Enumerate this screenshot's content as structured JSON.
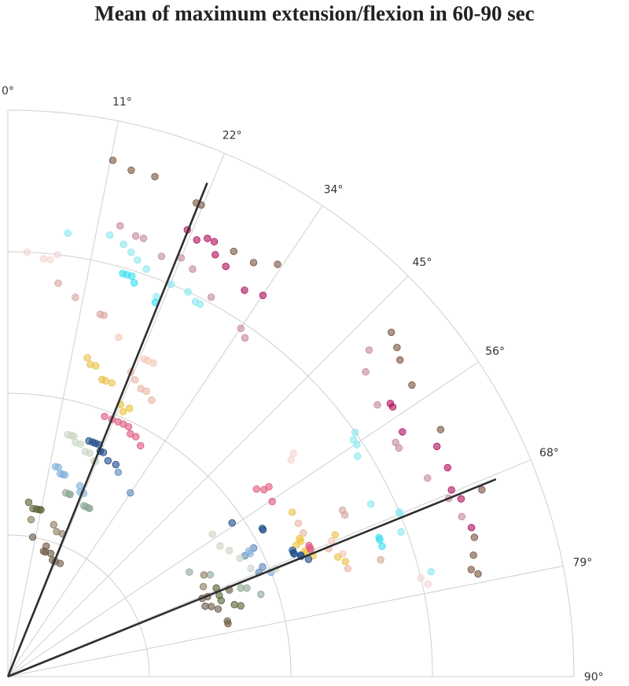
{
  "chart_data": {
    "type": "scatter",
    "coordinate_system": "polar",
    "title": "Mean of maximum extension/flexion in 60-90 sec",
    "theta_ticks": [
      "0°",
      "11°",
      "22°",
      "34°",
      "45°",
      "56°",
      "68°",
      "79°",
      "90°"
    ],
    "theta_range_deg": [
      0,
      90
    ],
    "r_range": [
      0,
      1
    ],
    "r_gridlines": [
      0.25,
      0.5,
      0.75,
      1.0
    ],
    "grid": true,
    "reference_lines": [
      {
        "angle_deg": 22,
        "r": 0.94,
        "color": "#2f2f2f"
      },
      {
        "angle_deg": 68,
        "r": 0.93,
        "color": "#2f2f2f"
      }
    ],
    "series": [
      {
        "color": "#7b5541",
        "points": [
          [
            11.5,
            0.93
          ],
          [
            13.7,
            0.92
          ],
          [
            16.4,
            0.92
          ],
          [
            21.7,
            0.9
          ],
          [
            22.3,
            0.9
          ],
          [
            28.0,
            0.85
          ],
          [
            30.7,
            0.85
          ],
          [
            33.2,
            0.87
          ]
        ]
      },
      {
        "color": "#b0145f",
        "points": [
          [
            21.9,
            0.85
          ],
          [
            23.4,
            0.84
          ],
          [
            24.5,
            0.85
          ],
          [
            25.4,
            0.85
          ],
          [
            26.2,
            0.83
          ],
          [
            28.0,
            0.82
          ],
          [
            31.5,
            0.8
          ],
          [
            33.8,
            0.81
          ]
        ]
      },
      {
        "color": "#c48a9b",
        "points": [
          [
            14.0,
            0.82
          ],
          [
            16.2,
            0.81
          ],
          [
            17.2,
            0.81
          ],
          [
            20.1,
            0.79
          ],
          [
            22.5,
            0.8
          ],
          [
            24.4,
            0.79
          ],
          [
            28.2,
            0.76
          ],
          [
            33.8,
            0.74
          ],
          [
            35.0,
            0.73
          ]
        ]
      },
      {
        "color": "#8be8f0",
        "points": [
          [
            7.7,
            0.79
          ],
          [
            13.0,
            0.8
          ],
          [
            15.0,
            0.79
          ],
          [
            16.2,
            0.78
          ],
          [
            17.3,
            0.77
          ],
          [
            18.8,
            0.76
          ],
          [
            22.6,
            0.75
          ],
          [
            25.1,
            0.75
          ],
          [
            26.6,
            0.74
          ],
          [
            27.3,
            0.74
          ],
          [
            21.4,
            0.72
          ]
        ]
      },
      {
        "color": "#3cdfee",
        "points": [
          [
            15.9,
            0.74
          ],
          [
            16.5,
            0.74
          ],
          [
            17.2,
            0.74
          ],
          [
            17.8,
            0.73
          ],
          [
            21.5,
            0.71
          ]
        ]
      },
      {
        "color": "#f6d5d5",
        "points": [
          [
            2.6,
            0.75
          ],
          [
            4.9,
            0.74
          ],
          [
            5.8,
            0.74
          ],
          [
            6.7,
            0.75
          ]
        ]
      },
      {
        "color": "#d8a7a0",
        "points": [
          [
            7.3,
            0.7
          ],
          [
            10.1,
            0.68
          ],
          [
            14.3,
            0.66
          ],
          [
            14.9,
            0.66
          ]
        ]
      },
      {
        "color": "#f6c8b5",
        "points": [
          [
            18.1,
            0.63
          ],
          [
            23.3,
            0.61
          ],
          [
            23.9,
            0.61
          ],
          [
            24.9,
            0.61
          ]
        ]
      },
      {
        "color": "#e8b6a7",
        "points": [
          [
            22.0,
            0.58
          ],
          [
            23.2,
            0.57
          ],
          [
            24.8,
            0.56
          ],
          [
            25.9,
            0.56
          ],
          [
            27.5,
            0.55
          ]
        ]
      },
      {
        "color": "#e8c24a",
        "points": [
          [
            14.0,
            0.58
          ],
          [
            14.8,
            0.57
          ],
          [
            15.8,
            0.57
          ],
          [
            17.6,
            0.55
          ],
          [
            18.3,
            0.55
          ],
          [
            19.5,
            0.55
          ]
        ]
      },
      {
        "color": "#ebc33a",
        "points": [
          [
            22.5,
            0.52
          ],
          [
            23.5,
            0.51
          ],
          [
            24.4,
            0.52
          ]
        ]
      },
      {
        "color": "#e05a7e",
        "points": [
          [
            20.4,
            0.49
          ],
          [
            22.0,
            0.49
          ],
          [
            23.4,
            0.49
          ],
          [
            24.6,
            0.49
          ],
          [
            25.8,
            0.49
          ],
          [
            26.8,
            0.48
          ],
          [
            28.1,
            0.48
          ],
          [
            29.9,
            0.47
          ]
        ]
      },
      {
        "color": "#1e4d8a",
        "points": [
          [
            19.0,
            0.44
          ],
          [
            19.9,
            0.44
          ],
          [
            20.6,
            0.44
          ],
          [
            21.5,
            0.44
          ],
          [
            22.3,
            0.43
          ],
          [
            23.1,
            0.43
          ],
          [
            24.9,
            0.42
          ],
          [
            27.0,
            0.42
          ]
        ]
      },
      {
        "color": "#5d87ba",
        "points": [
          [
            28.4,
            0.41
          ],
          [
            33.7,
            0.39
          ]
        ]
      },
      {
        "color": "#c9d7c4",
        "points": [
          [
            13.9,
            0.44
          ],
          [
            14.8,
            0.44
          ],
          [
            15.4,
            0.44
          ],
          [
            16.1,
            0.43
          ],
          [
            17.4,
            0.43
          ],
          [
            19.0,
            0.42
          ],
          [
            20.1,
            0.42
          ],
          [
            21.8,
            0.41
          ],
          [
            22.2,
            0.41
          ]
        ]
      },
      {
        "color": "#82b2dc",
        "points": [
          [
            12.8,
            0.38
          ],
          [
            13.6,
            0.38
          ],
          [
            14.5,
            0.37
          ],
          [
            15.2,
            0.37
          ],
          [
            15.8,
            0.37
          ],
          [
            20.7,
            0.36
          ],
          [
            21.4,
            0.35
          ],
          [
            22.5,
            0.35
          ]
        ]
      },
      {
        "color": "#8fa896",
        "points": [
          [
            17.5,
            0.34
          ],
          [
            18.5,
            0.34
          ],
          [
            18.9,
            0.34
          ],
          [
            24.0,
            0.33
          ],
          [
            24.7,
            0.33
          ],
          [
            25.6,
            0.33
          ],
          [
            25.9,
            0.33
          ]
        ]
      },
      {
        "color": "#5a6336",
        "points": [
          [
            6.8,
            0.31
          ],
          [
            8.5,
            0.3
          ],
          [
            9.7,
            0.3
          ],
          [
            10.7,
            0.3
          ],
          [
            11.2,
            0.3
          ]
        ]
      },
      {
        "color": "#8a7a5d",
        "points": [
          [
            8.4,
            0.28
          ],
          [
            16.8,
            0.28
          ],
          [
            18.6,
            0.27
          ],
          [
            20.9,
            0.27
          ]
        ]
      },
      {
        "color": "#6d5a47",
        "points": [
          [
            10.1,
            0.25
          ],
          [
            15.9,
            0.23
          ],
          [
            16.4,
            0.24
          ],
          [
            16.8,
            0.23
          ],
          [
            19.2,
            0.23
          ],
          [
            21.0,
            0.22
          ],
          [
            22.5,
            0.22
          ],
          [
            24.8,
            0.22
          ]
        ]
      },
      {
        "color": "#7b5541",
        "points": [
          [
            48.1,
            0.91
          ],
          [
            49.8,
            0.9
          ],
          [
            51.1,
            0.89
          ],
          [
            54.2,
            0.88
          ],
          [
            60.3,
            0.88
          ],
          [
            68.5,
            0.9
          ],
          [
            73.4,
            0.86
          ],
          [
            75.4,
            0.85
          ],
          [
            77.0,
            0.84
          ],
          [
            77.7,
            0.85
          ]
        ]
      },
      {
        "color": "#b0145f",
        "points": [
          [
            54.5,
            0.83
          ],
          [
            55.0,
            0.83
          ],
          [
            58.2,
            0.82
          ],
          [
            61.8,
            0.86
          ],
          [
            64.6,
            0.86
          ],
          [
            67.2,
            0.85
          ],
          [
            68.6,
            0.86
          ],
          [
            72.2,
            0.86
          ]
        ]
      },
      {
        "color": "#c48a9b",
        "points": [
          [
            47.9,
            0.86
          ],
          [
            49.6,
            0.83
          ],
          [
            53.7,
            0.81
          ],
          [
            58.9,
            0.8
          ],
          [
            59.7,
            0.8
          ],
          [
            64.7,
            0.82
          ],
          [
            68.0,
            0.84
          ],
          [
            70.6,
            0.85
          ]
        ]
      },
      {
        "color": "#8be8f0",
        "points": [
          [
            54.9,
            0.75
          ],
          [
            55.6,
            0.74
          ],
          [
            56.4,
            0.74
          ],
          [
            57.8,
            0.73
          ],
          [
            64.6,
            0.71
          ],
          [
            67.2,
            0.75
          ],
          [
            67.5,
            0.75
          ],
          [
            69.8,
            0.74
          ],
          [
            76.1,
            0.77
          ]
        ]
      },
      {
        "color": "#3cdfee",
        "points": [
          [
            69.5,
            0.7
          ],
          [
            69.8,
            0.7
          ],
          [
            70.8,
            0.7
          ]
        ]
      },
      {
        "color": "#f6d5d5",
        "points": [
          [
            52.0,
            0.64
          ],
          [
            52.6,
            0.63
          ],
          [
            76.6,
            0.75
          ],
          [
            77.6,
            0.76
          ]
        ]
      },
      {
        "color": "#d8a7a0",
        "points": [
          [
            63.6,
            0.66
          ],
          [
            64.4,
            0.66
          ],
          [
            72.6,
            0.69
          ]
        ]
      },
      {
        "color": "#f6c8b5",
        "points": [
          [
            67.3,
            0.62
          ],
          [
            69.9,
            0.63
          ]
        ]
      },
      {
        "color": "#e8b6a7",
        "points": [
          [
            62.2,
            0.58
          ],
          [
            64.1,
            0.58
          ],
          [
            68.3,
            0.61
          ],
          [
            72.4,
            0.63
          ]
        ]
      },
      {
        "color": "#e8c24a",
        "points": [
          [
            60.0,
            0.58
          ],
          [
            66.6,
            0.63
          ],
          [
            70.1,
            0.62
          ],
          [
            71.2,
            0.63
          ]
        ]
      },
      {
        "color": "#ebc33a",
        "points": [
          [
            64.7,
            0.57
          ],
          [
            65.2,
            0.57
          ],
          [
            65.5,
            0.56
          ],
          [
            67.1,
            0.57
          ],
          [
            67.5,
            0.57
          ],
          [
            68.4,
            0.58
          ]
        ]
      },
      {
        "color": "#e05a7e",
        "points": [
          [
            53.0,
            0.55
          ],
          [
            53.9,
            0.56
          ],
          [
            54.0,
            0.57
          ],
          [
            56.5,
            0.56
          ],
          [
            66.5,
            0.58
          ],
          [
            66.9,
            0.58
          ],
          [
            67.2,
            0.58
          ]
        ]
      },
      {
        "color": "#1e4d8a",
        "points": [
          [
            55.6,
            0.48
          ],
          [
            59.8,
            0.52
          ],
          [
            60.1,
            0.52
          ],
          [
            66.1,
            0.55
          ],
          [
            66.6,
            0.55
          ],
          [
            66.8,
            0.55
          ],
          [
            67.5,
            0.56
          ],
          [
            67.7,
            0.56
          ],
          [
            68.7,
            0.57
          ]
        ]
      },
      {
        "color": "#5d87ba",
        "points": [
          [
            62.4,
            0.49
          ],
          [
            63.0,
            0.47
          ],
          [
            66.7,
            0.49
          ],
          [
            67.5,
            0.48
          ]
        ]
      },
      {
        "color": "#82b2dc",
        "points": [
          [
            62.5,
            0.48
          ],
          [
            63.1,
            0.48
          ],
          [
            68.4,
            0.5
          ]
        ]
      },
      {
        "color": "#c9d7c4",
        "points": [
          [
            55.2,
            0.44
          ],
          [
            58.4,
            0.44
          ],
          [
            60.4,
            0.45
          ],
          [
            63.0,
            0.46
          ],
          [
            66.0,
            0.47
          ],
          [
            68.1,
            0.51
          ]
        ]
      },
      {
        "color": "#8fa896",
        "points": [
          [
            60.1,
            0.37
          ],
          [
            63.3,
            0.4
          ],
          [
            68.4,
            0.42
          ],
          [
            69.2,
            0.44
          ],
          [
            69.7,
            0.45
          ],
          [
            72.0,
            0.47
          ]
        ]
      },
      {
        "color": "#8a7a5d",
        "points": [
          [
            62.6,
            0.39
          ],
          [
            65.3,
            0.38
          ],
          [
            68.7,
            0.42
          ]
        ]
      },
      {
        "color": "#5a6336",
        "points": [
          [
            67.0,
            0.4
          ],
          [
            69.0,
            0.4
          ],
          [
            70.4,
            0.4
          ],
          [
            72.4,
            0.42
          ],
          [
            73.1,
            0.43
          ]
        ]
      },
      {
        "color": "#6d5a47",
        "points": [
          [
            68.1,
            0.37
          ],
          [
            68.2,
            0.38
          ],
          [
            70.4,
            0.37
          ],
          [
            71.0,
            0.38
          ],
          [
            72.2,
            0.39
          ],
          [
            75.8,
            0.4
          ],
          [
            76.5,
            0.4
          ]
        ]
      }
    ]
  }
}
